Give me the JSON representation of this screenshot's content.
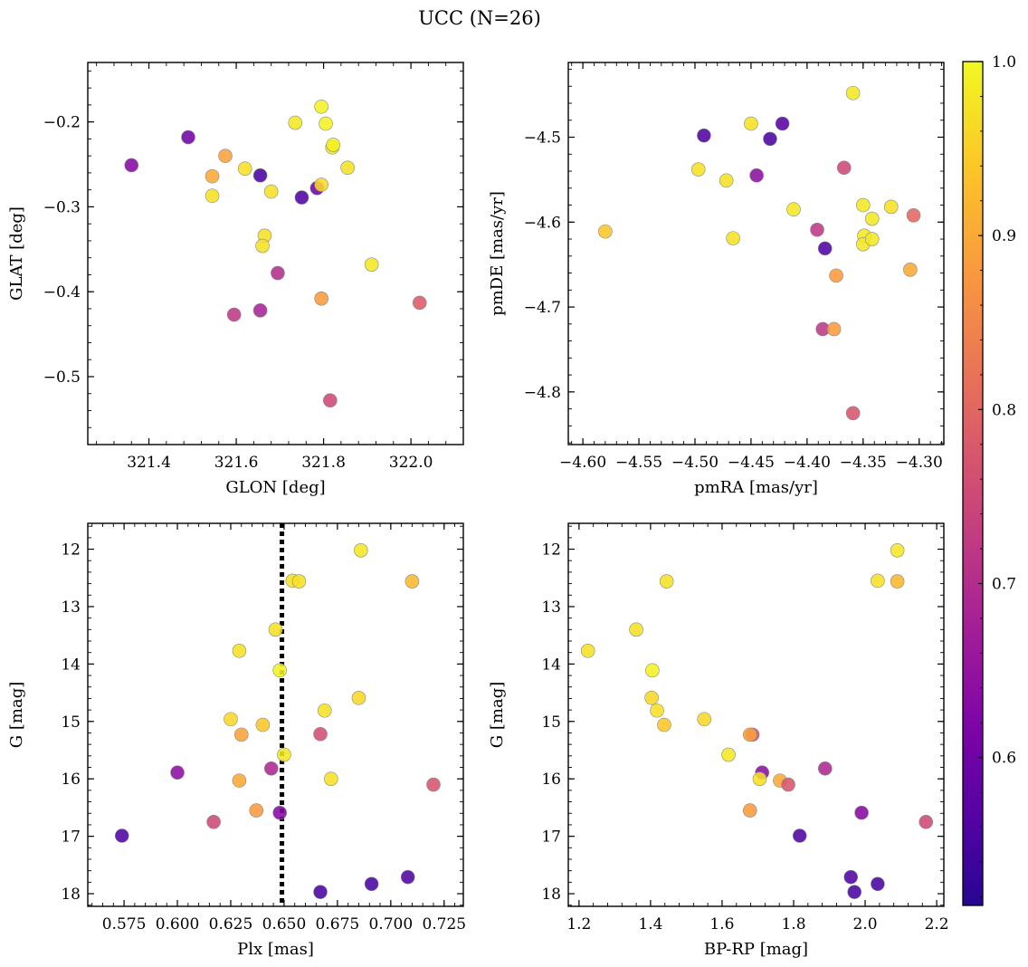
{
  "figure": {
    "title": "UCC (N=26)",
    "colorbar": {
      "cmap": "plasma",
      "min": 0.515,
      "max": 1.0,
      "ticks": [
        0.6,
        0.7,
        0.8,
        0.9,
        1.0
      ],
      "tick_labels": [
        "0.6",
        "0.7",
        "0.8",
        "0.9",
        "1.0"
      ]
    }
  },
  "chart_data": [
    {
      "type": "scatter",
      "id": "glon-glat",
      "xlabel": "GLON [deg]",
      "ylabel": "GLAT [deg]",
      "xlim": [
        321.26,
        322.12
      ],
      "ylim": [
        -0.58,
        -0.13
      ],
      "y_inverted": false,
      "xticks": [
        321.4,
        321.6,
        321.8,
        322.0
      ],
      "xtick_labels": [
        "321.4",
        "321.6",
        "321.8",
        "322.0"
      ],
      "yticks": [
        -0.5,
        -0.4,
        -0.3,
        -0.2
      ],
      "ytick_labels": [
        "−0.5",
        "−0.4",
        "−0.3",
        "−0.2"
      ],
      "points": [
        {
          "x": 321.36,
          "y": -0.251,
          "c": 0.63
        },
        {
          "x": 321.49,
          "y": -0.218,
          "c": 0.6
        },
        {
          "x": 321.575,
          "y": -0.24,
          "c": 0.89
        },
        {
          "x": 321.545,
          "y": -0.264,
          "c": 0.9
        },
        {
          "x": 321.545,
          "y": -0.287,
          "c": 0.97
        },
        {
          "x": 321.62,
          "y": -0.255,
          "c": 0.97
        },
        {
          "x": 321.655,
          "y": -0.263,
          "c": 0.55
        },
        {
          "x": 321.68,
          "y": -0.282,
          "c": 0.97
        },
        {
          "x": 321.735,
          "y": -0.201,
          "c": 0.98
        },
        {
          "x": 321.795,
          "y": -0.182,
          "c": 0.99
        },
        {
          "x": 321.805,
          "y": -0.202,
          "c": 0.99
        },
        {
          "x": 321.82,
          "y": -0.23,
          "c": 0.98
        },
        {
          "x": 321.822,
          "y": -0.227,
          "c": 0.99
        },
        {
          "x": 321.855,
          "y": -0.254,
          "c": 0.97
        },
        {
          "x": 321.75,
          "y": -0.289,
          "c": 0.56
        },
        {
          "x": 321.785,
          "y": -0.278,
          "c": 0.6
        },
        {
          "x": 321.795,
          "y": -0.274,
          "c": 0.96
        },
        {
          "x": 321.665,
          "y": -0.334,
          "c": 0.97
        },
        {
          "x": 321.66,
          "y": -0.346,
          "c": 0.97
        },
        {
          "x": 321.695,
          "y": -0.378,
          "c": 0.7
        },
        {
          "x": 321.91,
          "y": -0.368,
          "c": 0.98
        },
        {
          "x": 321.595,
          "y": -0.427,
          "c": 0.72
        },
        {
          "x": 321.655,
          "y": -0.422,
          "c": 0.68
        },
        {
          "x": 321.795,
          "y": -0.408,
          "c": 0.88
        },
        {
          "x": 321.815,
          "y": -0.528,
          "c": 0.75
        },
        {
          "x": 322.02,
          "y": -0.413,
          "c": 0.78
        }
      ]
    },
    {
      "type": "scatter",
      "id": "pmra-pmde",
      "xlabel": "pmRA [mas/yr]",
      "ylabel": "pmDE [mas/yr]",
      "xlim": [
        -4.613,
        -4.278
      ],
      "ylim": [
        -4.862,
        -4.412
      ],
      "y_inverted": false,
      "xticks": [
        -4.6,
        -4.55,
        -4.5,
        -4.45,
        -4.4,
        -4.35,
        -4.3
      ],
      "xtick_labels": [
        "−4.60",
        "−4.55",
        "−4.50",
        "−4.45",
        "−4.40",
        "−4.35",
        "−4.30"
      ],
      "yticks": [
        -4.8,
        -4.7,
        -4.6,
        -4.5
      ],
      "ytick_labels": [
        "−4.8",
        "−4.7",
        "−4.6",
        "−4.5"
      ],
      "points": [
        {
          "x": -4.58,
          "y": -4.611,
          "c": 0.94
        },
        {
          "x": -4.492,
          "y": -4.498,
          "c": 0.56
        },
        {
          "x": -4.497,
          "y": -4.538,
          "c": 0.97
        },
        {
          "x": -4.472,
          "y": -4.551,
          "c": 0.97
        },
        {
          "x": -4.45,
          "y": -4.484,
          "c": 0.97
        },
        {
          "x": -4.433,
          "y": -4.502,
          "c": 0.55
        },
        {
          "x": -4.422,
          "y": -4.484,
          "c": 0.57
        },
        {
          "x": -4.445,
          "y": -4.545,
          "c": 0.64
        },
        {
          "x": -4.466,
          "y": -4.619,
          "c": 0.97
        },
        {
          "x": -4.412,
          "y": -4.585,
          "c": 0.98
        },
        {
          "x": -4.359,
          "y": -4.448,
          "c": 0.98
        },
        {
          "x": -4.367,
          "y": -4.536,
          "c": 0.75
        },
        {
          "x": -4.391,
          "y": -4.609,
          "c": 0.72
        },
        {
          "x": -4.384,
          "y": -4.631,
          "c": 0.56
        },
        {
          "x": -4.35,
          "y": -4.58,
          "c": 0.98
        },
        {
          "x": -4.349,
          "y": -4.616,
          "c": 0.98
        },
        {
          "x": -4.35,
          "y": -4.626,
          "c": 0.98
        },
        {
          "x": -4.342,
          "y": -4.596,
          "c": 0.98
        },
        {
          "x": -4.342,
          "y": -4.62,
          "c": 0.98
        },
        {
          "x": -4.325,
          "y": -4.582,
          "c": 0.97
        },
        {
          "x": -4.305,
          "y": -4.592,
          "c": 0.8
        },
        {
          "x": -4.308,
          "y": -4.656,
          "c": 0.9
        },
        {
          "x": -4.374,
          "y": -4.663,
          "c": 0.88
        },
        {
          "x": -4.386,
          "y": -4.726,
          "c": 0.72
        },
        {
          "x": -4.376,
          "y": -4.726,
          "c": 0.88
        },
        {
          "x": -4.359,
          "y": -4.825,
          "c": 0.77
        }
      ]
    },
    {
      "type": "scatter",
      "id": "plx-g",
      "xlabel": "Plx [mas]",
      "ylabel": "G [mag]",
      "xlim": [
        0.558,
        0.734
      ],
      "ylim": [
        11.55,
        18.22
      ],
      "y_inverted": true,
      "vline": 0.649,
      "xticks": [
        0.575,
        0.6,
        0.625,
        0.65,
        0.675,
        0.7,
        0.725
      ],
      "xtick_labels": [
        "0.575",
        "0.600",
        "0.625",
        "0.650",
        "0.675",
        "0.700",
        "0.725"
      ],
      "yticks": [
        12,
        13,
        14,
        15,
        16,
        17,
        18
      ],
      "ytick_labels": [
        "12",
        "13",
        "14",
        "15",
        "16",
        "17",
        "18"
      ],
      "points": [
        {
          "x": 0.686,
          "y": 12.02,
          "c": 0.98
        },
        {
          "x": 0.654,
          "y": 12.55,
          "c": 0.97
        },
        {
          "x": 0.657,
          "y": 12.56,
          "c": 0.97
        },
        {
          "x": 0.71,
          "y": 12.56,
          "c": 0.92
        },
        {
          "x": 0.646,
          "y": 13.4,
          "c": 0.97
        },
        {
          "x": 0.629,
          "y": 13.77,
          "c": 0.97
        },
        {
          "x": 0.648,
          "y": 14.11,
          "c": 0.99
        },
        {
          "x": 0.685,
          "y": 14.59,
          "c": 0.96
        },
        {
          "x": 0.669,
          "y": 14.81,
          "c": 0.97
        },
        {
          "x": 0.625,
          "y": 14.96,
          "c": 0.96
        },
        {
          "x": 0.64,
          "y": 15.06,
          "c": 0.94
        },
        {
          "x": 0.63,
          "y": 15.23,
          "c": 0.89
        },
        {
          "x": 0.667,
          "y": 15.22,
          "c": 0.76
        },
        {
          "x": 0.65,
          "y": 15.58,
          "c": 0.98
        },
        {
          "x": 0.644,
          "y": 15.82,
          "c": 0.69
        },
        {
          "x": 0.6,
          "y": 15.89,
          "c": 0.64
        },
        {
          "x": 0.629,
          "y": 16.03,
          "c": 0.9
        },
        {
          "x": 0.672,
          "y": 16.0,
          "c": 0.97
        },
        {
          "x": 0.72,
          "y": 16.1,
          "c": 0.77
        },
        {
          "x": 0.637,
          "y": 16.55,
          "c": 0.88
        },
        {
          "x": 0.648,
          "y": 16.59,
          "c": 0.63
        },
        {
          "x": 0.617,
          "y": 16.75,
          "c": 0.75
        },
        {
          "x": 0.574,
          "y": 16.99,
          "c": 0.56
        },
        {
          "x": 0.708,
          "y": 17.71,
          "c": 0.56
        },
        {
          "x": 0.691,
          "y": 17.83,
          "c": 0.55
        },
        {
          "x": 0.667,
          "y": 17.97,
          "c": 0.55
        }
      ]
    },
    {
      "type": "scatter",
      "id": "bprp-g",
      "xlabel": "BP-RP [mag]",
      "ylabel": "G [mag]",
      "xlim": [
        1.17,
        2.22
      ],
      "ylim": [
        11.55,
        18.22
      ],
      "y_inverted": true,
      "xticks": [
        1.2,
        1.4,
        1.6,
        1.8,
        2.0,
        2.2
      ],
      "xtick_labels": [
        "1.2",
        "1.4",
        "1.6",
        "1.8",
        "2.0",
        "2.2"
      ],
      "yticks": [
        12,
        13,
        14,
        15,
        16,
        17,
        18
      ],
      "ytick_labels": [
        "12",
        "13",
        "14",
        "15",
        "16",
        "17",
        "18"
      ],
      "points": [
        {
          "x": 2.09,
          "y": 12.02,
          "c": 0.98
        },
        {
          "x": 2.035,
          "y": 12.55,
          "c": 0.97
        },
        {
          "x": 2.09,
          "y": 12.56,
          "c": 0.92
        },
        {
          "x": 1.445,
          "y": 12.56,
          "c": 0.97
        },
        {
          "x": 1.36,
          "y": 13.4,
          "c": 0.97
        },
        {
          "x": 1.225,
          "y": 13.77,
          "c": 0.97
        },
        {
          "x": 1.405,
          "y": 14.11,
          "c": 0.99
        },
        {
          "x": 1.403,
          "y": 14.59,
          "c": 0.96
        },
        {
          "x": 1.418,
          "y": 14.81,
          "c": 0.97
        },
        {
          "x": 1.55,
          "y": 14.96,
          "c": 0.96
        },
        {
          "x": 1.438,
          "y": 15.06,
          "c": 0.94
        },
        {
          "x": 1.685,
          "y": 15.23,
          "c": 0.76
        },
        {
          "x": 1.678,
          "y": 15.23,
          "c": 0.89
        },
        {
          "x": 1.618,
          "y": 15.58,
          "c": 0.98
        },
        {
          "x": 1.888,
          "y": 15.82,
          "c": 0.69
        },
        {
          "x": 1.712,
          "y": 15.89,
          "c": 0.64
        },
        {
          "x": 1.705,
          "y": 16.0,
          "c": 0.97
        },
        {
          "x": 1.762,
          "y": 16.03,
          "c": 0.9
        },
        {
          "x": 1.785,
          "y": 16.1,
          "c": 0.77
        },
        {
          "x": 1.678,
          "y": 16.55,
          "c": 0.88
        },
        {
          "x": 1.99,
          "y": 16.59,
          "c": 0.63
        },
        {
          "x": 2.17,
          "y": 16.75,
          "c": 0.75
        },
        {
          "x": 1.817,
          "y": 16.99,
          "c": 0.56
        },
        {
          "x": 1.96,
          "y": 17.71,
          "c": 0.56
        },
        {
          "x": 2.035,
          "y": 17.83,
          "c": 0.55
        },
        {
          "x": 1.97,
          "y": 17.97,
          "c": 0.55
        }
      ]
    }
  ]
}
